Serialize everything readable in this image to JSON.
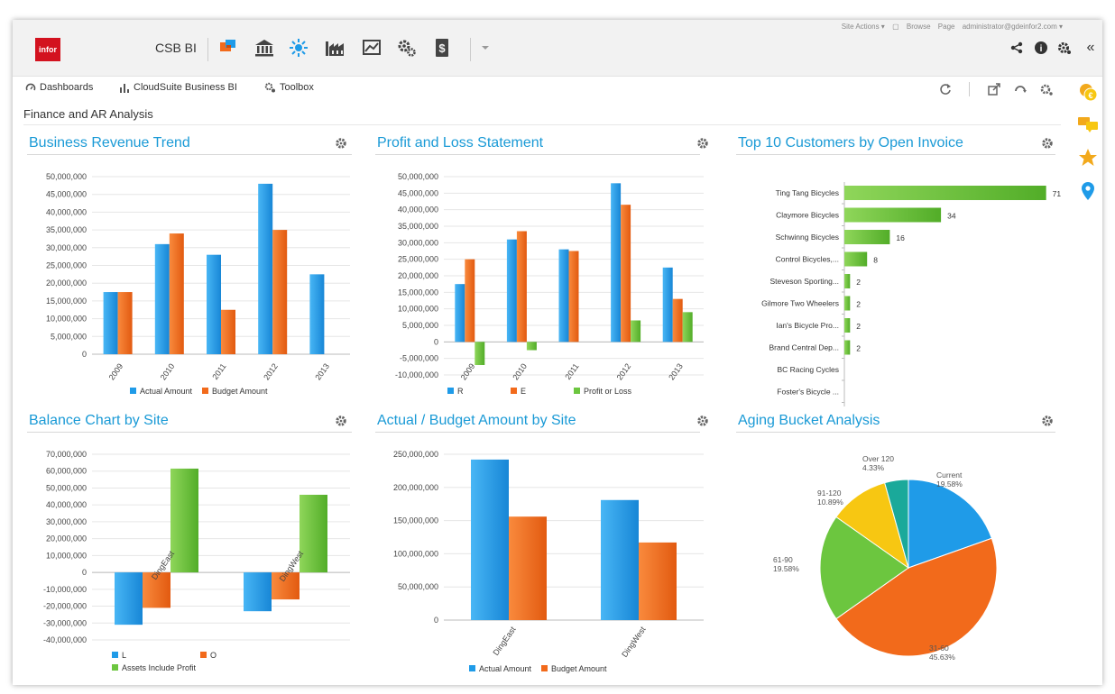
{
  "app": {
    "logo_text": "infor",
    "title": "CSB BI"
  },
  "topbar": {
    "links": [
      "Site Actions ▾",
      "Browse",
      "Page",
      "administrator@gdeinfor2.com ▾"
    ],
    "icons": [
      "chat-icon",
      "bank-icon",
      "idea-icon",
      "factory-icon",
      "chart-icon",
      "gears-icon",
      "dollar-doc-icon",
      "dropdown-icon"
    ],
    "right_icons": [
      "share-icon",
      "info-icon",
      "settings-icon",
      "collapse-icon"
    ],
    "collapse_glyph": "«"
  },
  "nav": {
    "items": [
      {
        "label": "Dashboards",
        "icon": "dashboard-icon"
      },
      {
        "label": "CloudSuite Business BI",
        "icon": "bar-chart-icon"
      },
      {
        "label": "Toolbox",
        "icon": "toolbox-icon"
      }
    ],
    "right_icons": [
      "refresh-icon",
      "export-icon",
      "reload-icon",
      "settings-icon"
    ]
  },
  "page_title": "Finance and AR Analysis",
  "sidebar_icons": [
    "currency-icon",
    "messages-icon",
    "star-icon",
    "location-icon"
  ],
  "colors": {
    "blue": "#1f9be8",
    "orange": "#f26a1b",
    "green": "#6cc63f",
    "yellow": "#f7c712",
    "teal": "#1aa99a",
    "title": "#1a9ad6"
  },
  "chart_data": [
    {
      "type": "bar",
      "title": "Business Revenue Trend",
      "categories": [
        "2009",
        "2010",
        "2011",
        "2012",
        "2013"
      ],
      "series": [
        {
          "name": "Actual Amount",
          "values": [
            17500000,
            31000000,
            28000000,
            48000000,
            22500000
          ]
        },
        {
          "name": "Budget Amount",
          "values": [
            17500000,
            34000000,
            12500000,
            35000000,
            null
          ]
        }
      ],
      "yticks": [
        "0",
        "5,000,000",
        "10,000,000",
        "15,000,000",
        "20,000,000",
        "25,000,000",
        "30,000,000",
        "35,000,000",
        "40,000,000",
        "45,000,000",
        "50,000,000"
      ],
      "ylim": [
        0,
        50000000
      ],
      "legend": "bottom"
    },
    {
      "type": "bar",
      "title": "Profit and Loss Statement",
      "categories": [
        "2009",
        "2010",
        "2011",
        "2012",
        "2013"
      ],
      "series": [
        {
          "name": "R",
          "values": [
            17500000,
            31000000,
            28000000,
            48000000,
            22500000
          ]
        },
        {
          "name": "E",
          "values": [
            25000000,
            33500000,
            27500000,
            41500000,
            13000000
          ]
        },
        {
          "name": "Profit or Loss",
          "values": [
            -7000000,
            -2500000,
            null,
            6500000,
            9000000
          ]
        }
      ],
      "yticks": [
        "-10,000,000",
        "-5,000,000",
        "0",
        "5,000,000",
        "10,000,000",
        "15,000,000",
        "20,000,000",
        "25,000,000",
        "30,000,000",
        "35,000,000",
        "40,000,000",
        "45,000,000",
        "50,000,000"
      ],
      "ylim": [
        -10000000,
        50000000
      ],
      "legend": "bottom"
    },
    {
      "type": "bar",
      "orientation": "horizontal",
      "title": "Top 10 Customers by Open Invoice",
      "categories": [
        "Ting Tang Bicycles",
        "Claymore Bicycles",
        "Schwinng Bicycles",
        "Control Bicycles,...",
        "Steveson Sporting...",
        "Gilmore Two Wheelers",
        "Ian's Bicycle Pro...",
        "Brand Central Dep...",
        "BC Racing Cycles",
        "Foster's Bicycle ..."
      ],
      "values": [
        71,
        34,
        16,
        8,
        2,
        2,
        2,
        2,
        null,
        null
      ],
      "labels": [
        "71",
        "34",
        "16",
        "8",
        "2",
        "2",
        "2",
        "2",
        "",
        ""
      ],
      "xlim": [
        0,
        80
      ]
    },
    {
      "type": "bar",
      "title": "Balance Chart by Site",
      "categories": [
        "DingEast",
        "DingWest"
      ],
      "series": [
        {
          "name": "L",
          "values": [
            -31000000,
            -23000000
          ]
        },
        {
          "name": "O",
          "values": [
            -21000000,
            -16000000
          ]
        },
        {
          "name": "Assets Include Profit",
          "values": [
            61500000,
            46000000
          ]
        }
      ],
      "yticks": [
        "-40,000,000",
        "-30,000,000",
        "-20,000,000",
        "-10,000,000",
        "0",
        "10,000,000",
        "20,000,000",
        "30,000,000",
        "40,000,000",
        "50,000,000",
        "60,000,000",
        "70,000,000"
      ],
      "ylim": [
        -40000000,
        70000000
      ],
      "legend": "bottom"
    },
    {
      "type": "bar",
      "title": "Actual / Budget Amount by Site",
      "categories": [
        "DingEast",
        "DingWest"
      ],
      "series": [
        {
          "name": "Actual Amount",
          "values": [
            242000000,
            181000000
          ]
        },
        {
          "name": "Budget Amount",
          "values": [
            156000000,
            117000000
          ]
        }
      ],
      "yticks": [
        "0",
        "50,000,000",
        "100,000,000",
        "150,000,000",
        "200,000,000",
        "250,000,000"
      ],
      "ylim": [
        0,
        250000000
      ],
      "legend": "bottom"
    },
    {
      "type": "pie",
      "title": "Aging Bucket Analysis",
      "slices": [
        {
          "name": "Current",
          "value": 19.58,
          "label": "19.58%"
        },
        {
          "name": "31-60",
          "value": 45.63,
          "label": "45.63%"
        },
        {
          "name": "61-90",
          "value": 19.58,
          "label": "19.58%"
        },
        {
          "name": "91-120",
          "value": 10.89,
          "label": "10.89%"
        },
        {
          "name": "Over 120",
          "value": 4.33,
          "label": "4.33%"
        }
      ]
    }
  ]
}
